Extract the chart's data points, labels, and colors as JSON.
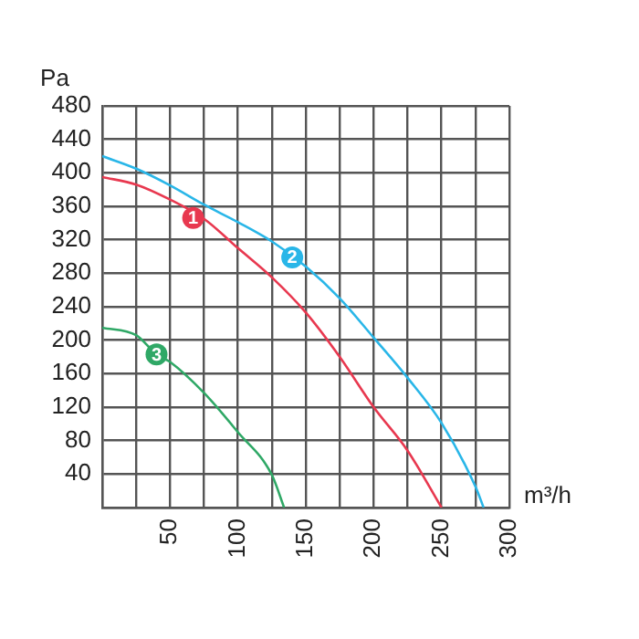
{
  "chart_data": {
    "type": "line",
    "xlabel": "m³/h",
    "ylabel": "Pa",
    "xlim": [
      0,
      300
    ],
    "ylim": [
      0,
      480
    ],
    "xticks": [
      {
        "value": 0,
        "label": null
      },
      {
        "value": 25,
        "label": null
      },
      50,
      {
        "value": 75,
        "label": null
      },
      100,
      {
        "value": 125,
        "label": null
      },
      150,
      {
        "value": 175,
        "label": null
      },
      200,
      {
        "value": 225,
        "label": null
      },
      250,
      {
        "value": 275,
        "label": null
      },
      300
    ],
    "yticks": [
      {
        "value": 0,
        "label": null
      },
      40,
      80,
      120,
      160,
      200,
      240,
      280,
      320,
      360,
      400,
      440,
      480
    ],
    "grid": true,
    "legend": false,
    "marker": "none",
    "line_style": "solid",
    "series": [
      {
        "color": "#e8384f",
        "x": [
          0,
          25,
          50,
          75,
          100,
          125,
          150,
          175,
          200,
          225,
          250
        ],
        "values": [
          395,
          386,
          368,
          345,
          310,
          275,
          233,
          180,
          120,
          68,
          0
        ]
      },
      {
        "color": "#29b6e8",
        "x": [
          0,
          25,
          50,
          75,
          100,
          125,
          150,
          175,
          200,
          225,
          250,
          275,
          281
        ],
        "values": [
          420,
          405,
          385,
          362,
          341,
          318,
          288,
          250,
          203,
          155,
          101,
          25,
          0
        ]
      },
      {
        "color": "#2fa866",
        "x": [
          0,
          25,
          40,
          50,
          75,
          100,
          125,
          134
        ],
        "values": [
          215,
          206,
          183,
          174,
          137,
          90,
          39,
          0
        ]
      }
    ],
    "annotations": [
      {
        "text": "1",
        "x": 67,
        "y": 346
      },
      {
        "text": "2",
        "x": 140,
        "y": 299
      },
      {
        "text": "3",
        "x": 40,
        "y": 183
      }
    ]
  }
}
